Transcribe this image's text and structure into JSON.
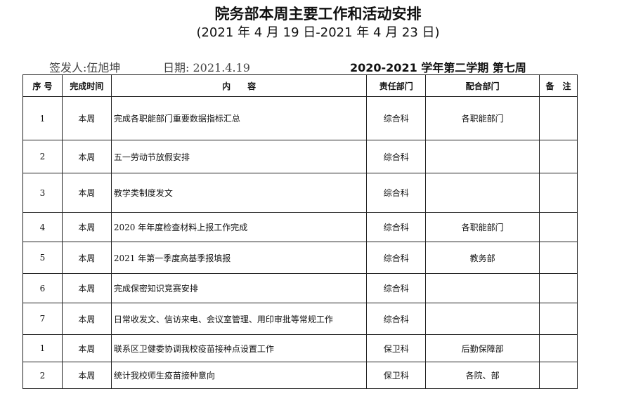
{
  "title": "院务部本周主要工作和活动安排",
  "subtitle": "(2021 年 4 月 19 日-2021 年 4 月 23 日)",
  "issuer": "签发人:伍旭坤",
  "date": "日期: 2021.4.19",
  "term": "2020-2021 学年第二学期  第七周",
  "headers": [
    "序 号",
    "完成时间",
    "内　　容",
    "责任部门",
    "配合部门",
    "备　注"
  ],
  "rows": [
    {
      "no": "1",
      "time": "本周",
      "content": "完成各职能部门重要数据指标汇总",
      "dept": "综合科",
      "coop": "各职能部门",
      "note": ""
    },
    {
      "no": "2",
      "time": "本周",
      "content": "五一劳动节放假安排",
      "dept": "综合科",
      "coop": "",
      "note": ""
    },
    {
      "no": "3",
      "time": "本周",
      "content": "教学类制度发文",
      "dept": "综合科",
      "coop": "",
      "note": ""
    },
    {
      "no": "4",
      "time": "本周",
      "content": "2020 年年度检查材料上报工作完成",
      "dept": "综合科",
      "coop": "各职能部门",
      "note": ""
    },
    {
      "no": "5",
      "time": "本周",
      "content": "2021 年第一季度高基季报填报",
      "dept": "综合科",
      "coop": "教务部",
      "note": ""
    },
    {
      "no": "6",
      "time": "本周",
      "content": "完成保密知识竞赛安排",
      "dept": "综合科",
      "coop": "",
      "note": ""
    },
    {
      "no": "7",
      "time": "本周",
      "content": "日常收发文、信访来电、会议室管理、用印审批等常规工作",
      "dept": "综合科",
      "coop": "",
      "note": ""
    },
    {
      "no": "1",
      "time": "本周",
      "content": "联系区卫健委协调我校疫苗接种点设置工作",
      "dept": "保卫科",
      "coop": "后勤保障部",
      "note": ""
    },
    {
      "no": "2",
      "time": "本周",
      "content": "统计我校师生疫苗接种意向",
      "dept": "保卫科",
      "coop": "各院、部",
      "note": ""
    }
  ]
}
